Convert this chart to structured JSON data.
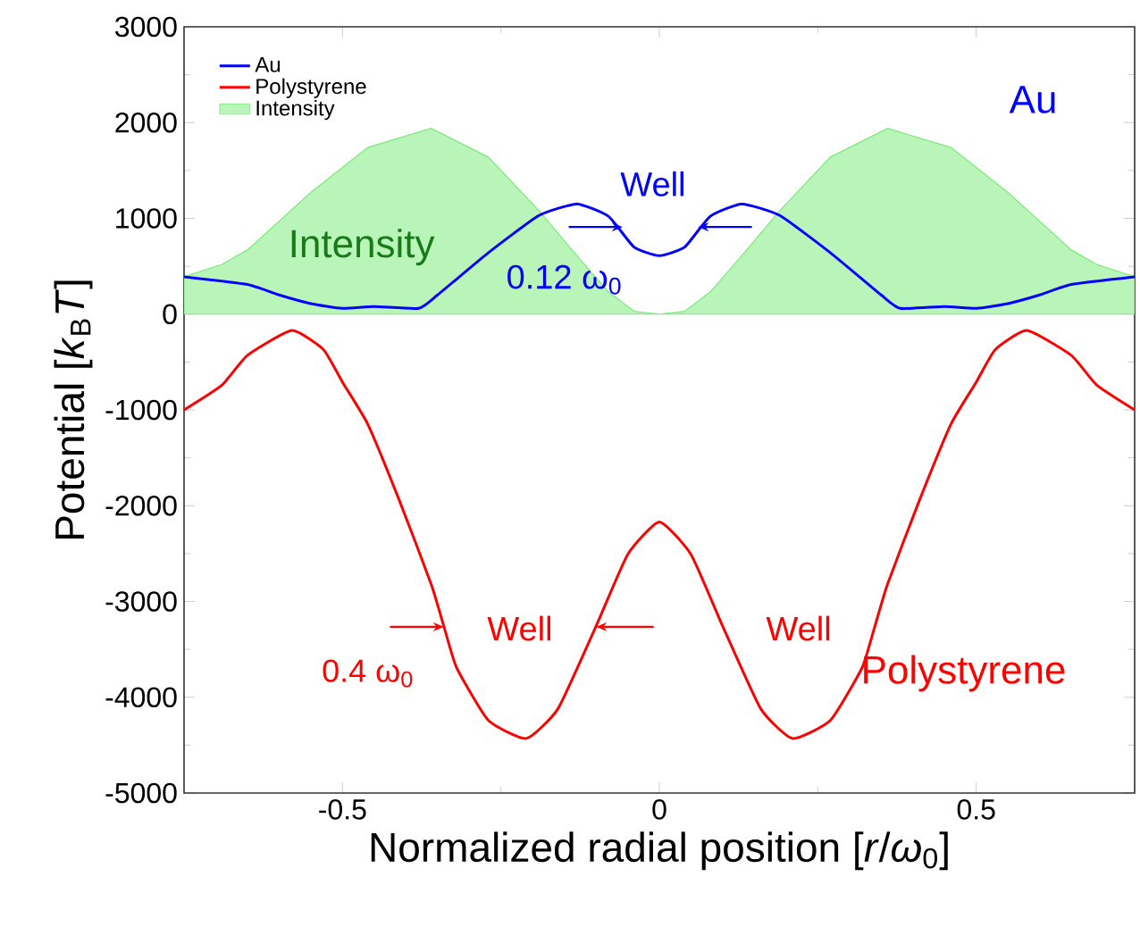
{
  "chart_data": {
    "type": "line",
    "xlabel": "Normalized radial position [*r*/*ω*$_{0}$]",
    "ylabel": "Potential [*k*$_{B}$*T*]",
    "xlim": [
      -0.75,
      0.75
    ],
    "xticks": [
      -0.5,
      0,
      0.5
    ],
    "ylim": [
      -5000,
      3000
    ],
    "yticks": [
      -5000,
      -4000,
      -3000,
      -2000,
      -1000,
      0,
      1000,
      2000,
      3000
    ],
    "legend": "top left",
    "series": [
      {
        "name": "Au",
        "color": "#0000ff",
        "x": [
          -0.75,
          -0.65,
          -0.6,
          -0.55,
          -0.5,
          -0.45,
          -0.38,
          -0.35,
          -0.27,
          -0.19,
          -0.13,
          -0.08,
          -0.04,
          0,
          0.04,
          0.08,
          0.13,
          0.19,
          0.27,
          0.35,
          0.38,
          0.45,
          0.5,
          0.55,
          0.6,
          0.65,
          0.75
        ],
        "values": [
          390,
          310,
          200,
          110,
          60,
          80,
          60,
          200,
          640,
          1030,
          1150,
          1020,
          700,
          610,
          700,
          1020,
          1150,
          1030,
          640,
          200,
          60,
          80,
          60,
          110,
          200,
          310,
          390
        ]
      },
      {
        "name": "Polystyrene",
        "color": "#ff0000",
        "x": [
          -0.75,
          -0.69,
          -0.65,
          -0.58,
          -0.53,
          -0.5,
          -0.46,
          -0.41,
          -0.36,
          -0.34,
          -0.32,
          -0.27,
          -0.21,
          -0.16,
          -0.1,
          -0.05,
          0,
          0.05,
          0.1,
          0.16,
          0.21,
          0.27,
          0.32,
          0.34,
          0.36,
          0.41,
          0.46,
          0.5,
          0.53,
          0.58,
          0.65,
          0.69,
          0.75
        ],
        "values": [
          -1000,
          -740,
          -430,
          -170,
          -370,
          -710,
          -1150,
          -1950,
          -2820,
          -3260,
          -3690,
          -4240,
          -4430,
          -4120,
          -3260,
          -2510,
          -2170,
          -2510,
          -3260,
          -4120,
          -4430,
          -4240,
          -3690,
          -3260,
          -2820,
          -1950,
          -1150,
          -710,
          -370,
          -170,
          -430,
          -740,
          -1000
        ]
      },
      {
        "name": "Intensity",
        "color": "#b9f5b9",
        "type": "area",
        "x": [
          -0.75,
          -0.69,
          -0.65,
          -0.55,
          -0.46,
          -0.36,
          -0.27,
          -0.19,
          -0.13,
          -0.08,
          -0.04,
          0,
          0.04,
          0.08,
          0.13,
          0.19,
          0.27,
          0.36,
          0.46,
          0.55,
          0.65,
          0.69,
          0.75
        ],
        "values": [
          390,
          520,
          670,
          1270,
          1740,
          1940,
          1640,
          1080,
          610,
          230,
          30,
          0,
          30,
          230,
          610,
          1080,
          1640,
          1940,
          1740,
          1270,
          670,
          520,
          390
        ]
      }
    ],
    "annotations": [
      "Au",
      "Well",
      "0.12 ω$_{0}$",
      "Intensity",
      "Well",
      "Well",
      "0.4 ω$_{0}$",
      "Polystyrene"
    ]
  }
}
